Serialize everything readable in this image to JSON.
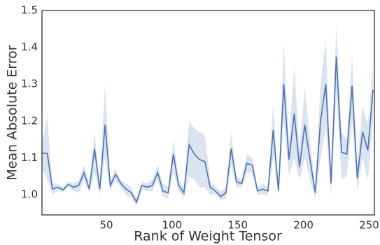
{
  "chart_data": {
    "type": "line",
    "xlabel": "Rank of Weight Tensor",
    "ylabel": "Mean Absolute Error",
    "x": [
      1,
      5,
      9,
      13,
      17,
      21,
      25,
      29,
      33,
      37,
      41,
      45,
      49,
      53,
      57,
      61,
      65,
      69,
      73,
      77,
      81,
      85,
      89,
      93,
      97,
      101,
      105,
      109,
      113,
      117,
      121,
      125,
      129,
      133,
      137,
      141,
      145,
      149,
      153,
      157,
      161,
      165,
      169,
      173,
      177,
      181,
      185,
      189,
      193,
      197,
      201,
      205,
      209,
      213,
      217,
      221,
      225,
      229,
      233,
      237,
      241,
      245,
      249,
      253
    ],
    "series": [
      {
        "color": "#4c72b0",
        "values": [
          1.113,
          1.112,
          1.015,
          1.02,
          1.013,
          1.028,
          1.02,
          1.025,
          1.06,
          1.015,
          1.125,
          1.015,
          1.19,
          1.025,
          1.055,
          1.03,
          1.015,
          1.005,
          0.98,
          1.025,
          1.02,
          1.025,
          1.06,
          1.01,
          1.005,
          1.11,
          1.025,
          1.005,
          1.135,
          1.11,
          1.095,
          1.09,
          1.02,
          1.01,
          0.995,
          1.005,
          1.125,
          1.035,
          1.03,
          1.085,
          1.08,
          1.01,
          1.015,
          1.01,
          1.175,
          1.01,
          1.3,
          1.095,
          1.22,
          1.075,
          1.19,
          1.095,
          1.005,
          1.2,
          1.3,
          1.03,
          1.375,
          1.115,
          1.11,
          1.295,
          1.045,
          1.17,
          1.12,
          1.285
        ],
        "band": {
          "upper": [
            1.14,
            1.21,
            1.03,
            1.03,
            1.02,
            1.035,
            1.03,
            1.04,
            1.08,
            1.03,
            1.17,
            1.03,
            1.3,
            1.04,
            1.07,
            1.04,
            1.03,
            1.02,
            0.99,
            1.035,
            1.03,
            1.04,
            1.08,
            1.03,
            1.02,
            1.15,
            1.04,
            1.02,
            1.2,
            1.18,
            1.17,
            1.16,
            1.04,
            1.02,
            1.01,
            1.02,
            1.17,
            1.05,
            1.04,
            1.11,
            1.1,
            1.02,
            1.03,
            1.02,
            1.25,
            1.02,
            1.41,
            1.14,
            1.35,
            1.12,
            1.29,
            1.15,
            1.02,
            1.3,
            1.42,
            1.07,
            1.46,
            1.17,
            1.15,
            1.38,
            1.08,
            1.24,
            1.19,
            1.35
          ],
          "lower": [
            1.07,
            1.04,
            1.0,
            1.01,
            1.005,
            1.02,
            1.01,
            1.005,
            1.04,
            1.005,
            1.06,
            1.0,
            1.1,
            1.01,
            1.04,
            1.02,
            1.0,
            0.99,
            0.97,
            1.015,
            1.01,
            1.01,
            1.04,
            0.995,
            0.99,
            1.06,
            1.01,
            0.99,
            1.05,
            1.04,
            1.02,
            1.02,
            1.0,
            1.0,
            0.985,
            0.99,
            1.08,
            1.02,
            1.02,
            1.06,
            1.06,
            1.0,
            1.0,
            1.0,
            1.1,
            1.0,
            1.2,
            1.05,
            1.1,
            1.04,
            1.1,
            1.04,
            0.99,
            1.1,
            1.18,
            1.0,
            1.27,
            1.04,
            1.05,
            1.2,
            1.01,
            1.1,
            1.04,
            1.2
          ]
        }
      }
    ],
    "xlim": [
      1,
      254
    ],
    "ylim": [
      0.945,
      1.5
    ],
    "xticks": [
      50,
      100,
      150,
      200,
      250
    ],
    "yticks": [
      {
        "value": 1,
        "label": "1.0"
      },
      1.1,
      1.2,
      1.3,
      1.4,
      1.5
    ],
    "grid": false
  }
}
